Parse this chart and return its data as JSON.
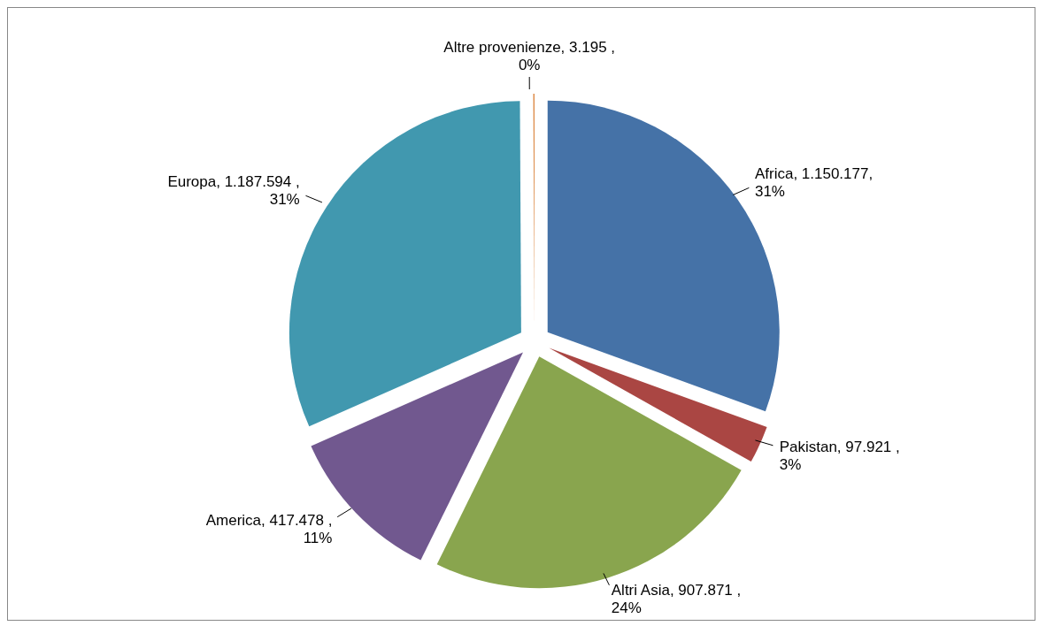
{
  "chart_data": {
    "type": "pie",
    "categories": [
      "Africa",
      "Pakistan",
      "Altri Asia",
      "America",
      "Europa",
      "Altre provenienze"
    ],
    "values": [
      1150177,
      97921,
      907871,
      417478,
      1187594,
      3195
    ],
    "colors": [
      "#4572a7",
      "#aa4643",
      "#89a54e",
      "#71588f",
      "#4198af",
      "#db843d"
    ],
    "value_labels": [
      "1.150.177, 31%",
      "97.921 , 3%",
      "907.871 , 24%",
      "417.478 , 11%",
      "1.187.594 , 31%",
      "3.195 , 0%"
    ],
    "legend": false
  }
}
